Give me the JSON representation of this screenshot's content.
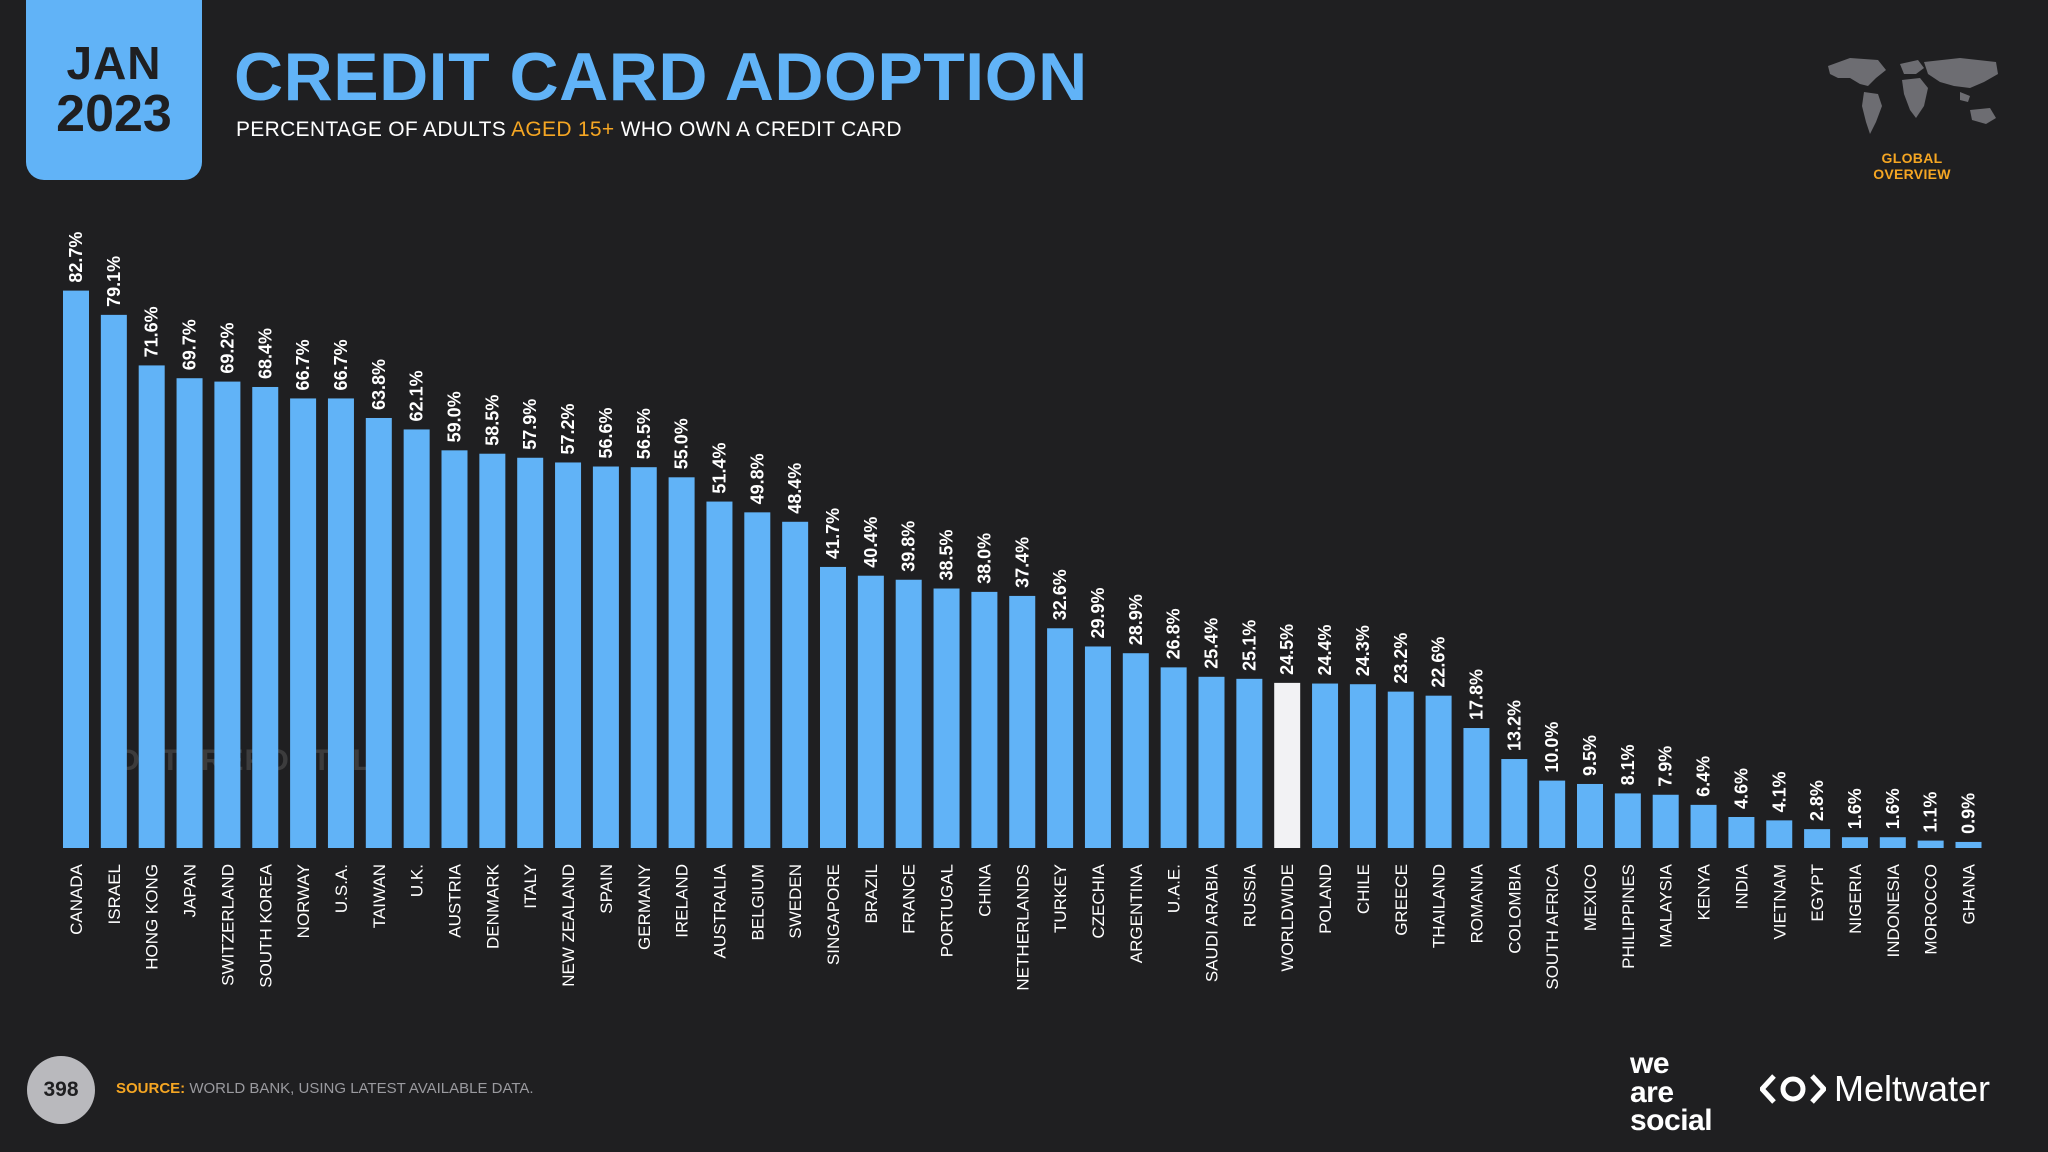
{
  "header": {
    "month": "JAN",
    "year": "2023",
    "title": "CREDIT CARD ADOPTION",
    "subtitle_pre": "PERCENTAGE OF ADULTS ",
    "subtitle_highlight": "AGED 15+",
    "subtitle_post": " WHO OWN A CREDIT CARD",
    "global_label": "GLOBAL OVERVIEW"
  },
  "watermark": "DATAREPORTAL",
  "footer": {
    "page_number": "398",
    "source_label": "SOURCE:",
    "source_text": " WORLD BANK, USING LATEST AVAILABLE DATA.",
    "brand_we": "we",
    "brand_are": "are",
    "brand_social": "social",
    "brand_meltwater": "Meltwater"
  },
  "colors": {
    "bar": "#61b3f7",
    "highlight_bar": "#f2f2f4",
    "accent": "#f5a623",
    "background": "#1f1f21"
  },
  "chart_data": {
    "type": "bar",
    "title": "CREDIT CARD ADOPTION",
    "xlabel": "",
    "ylabel": "",
    "ylim": [
      0,
      100
    ],
    "grid": false,
    "highlight": "WORLDWIDE",
    "categories": [
      "CANADA",
      "ISRAEL",
      "HONG KONG",
      "JAPAN",
      "SWITZERLAND",
      "SOUTH KOREA",
      "NORWAY",
      "U.S.A.",
      "TAIWAN",
      "U.K.",
      "AUSTRIA",
      "DENMARK",
      "ITALY",
      "NEW ZEALAND",
      "SPAIN",
      "GERMANY",
      "IRELAND",
      "AUSTRALIA",
      "BELGIUM",
      "SWEDEN",
      "SINGAPORE",
      "BRAZIL",
      "FRANCE",
      "PORTUGAL",
      "CHINA",
      "NETHERLANDS",
      "TURKEY",
      "CZECHIA",
      "ARGENTINA",
      "U.A.E.",
      "SAUDI ARABIA",
      "RUSSIA",
      "WORLDWIDE",
      "POLAND",
      "CHILE",
      "GREECE",
      "THAILAND",
      "ROMANIA",
      "COLOMBIA",
      "SOUTH AFRICA",
      "MEXICO",
      "PHILIPPINES",
      "MALAYSIA",
      "KENYA",
      "INDIA",
      "VIETNAM",
      "EGYPT",
      "NIGERIA",
      "INDONESIA",
      "MOROCCO",
      "GHANA"
    ],
    "values": [
      82.7,
      79.1,
      71.6,
      69.7,
      69.2,
      68.4,
      66.7,
      66.7,
      63.8,
      62.1,
      59.0,
      58.5,
      57.9,
      57.2,
      56.6,
      56.5,
      55.0,
      51.4,
      49.8,
      48.4,
      41.7,
      40.4,
      39.8,
      38.5,
      38.0,
      37.4,
      32.6,
      29.9,
      28.9,
      26.8,
      25.4,
      25.1,
      24.5,
      24.4,
      24.3,
      23.2,
      22.6,
      17.8,
      13.2,
      10.0,
      9.5,
      8.1,
      7.9,
      6.4,
      4.6,
      4.1,
      2.8,
      1.6,
      1.6,
      1.1,
      0.9
    ],
    "labels": [
      "82.7%",
      "79.1%",
      "71.6%",
      "69.7%",
      "69.2%",
      "68.4%",
      "66.7%",
      "66.7%",
      "63.8%",
      "62.1%",
      "59.0%",
      "58.5%",
      "57.9%",
      "57.2%",
      "56.6%",
      "56.5%",
      "55.0%",
      "51.4%",
      "49.8%",
      "48.4%",
      "41.7%",
      "40.4%",
      "39.8%",
      "38.5%",
      "38.0%",
      "37.4%",
      "32.6%",
      "29.9%",
      "28.9%",
      "26.8%",
      "25.4%",
      "25.1%",
      "24.5%",
      "24.4%",
      "24.3%",
      "23.2%",
      "22.6%",
      "17.8%",
      "13.2%",
      "10.0%",
      "9.5%",
      "8.1%",
      "7.9%",
      "6.4%",
      "4.6%",
      "4.1%",
      "2.8%",
      "1.6%",
      "1.6%",
      "1.1%",
      "0.9%"
    ]
  }
}
